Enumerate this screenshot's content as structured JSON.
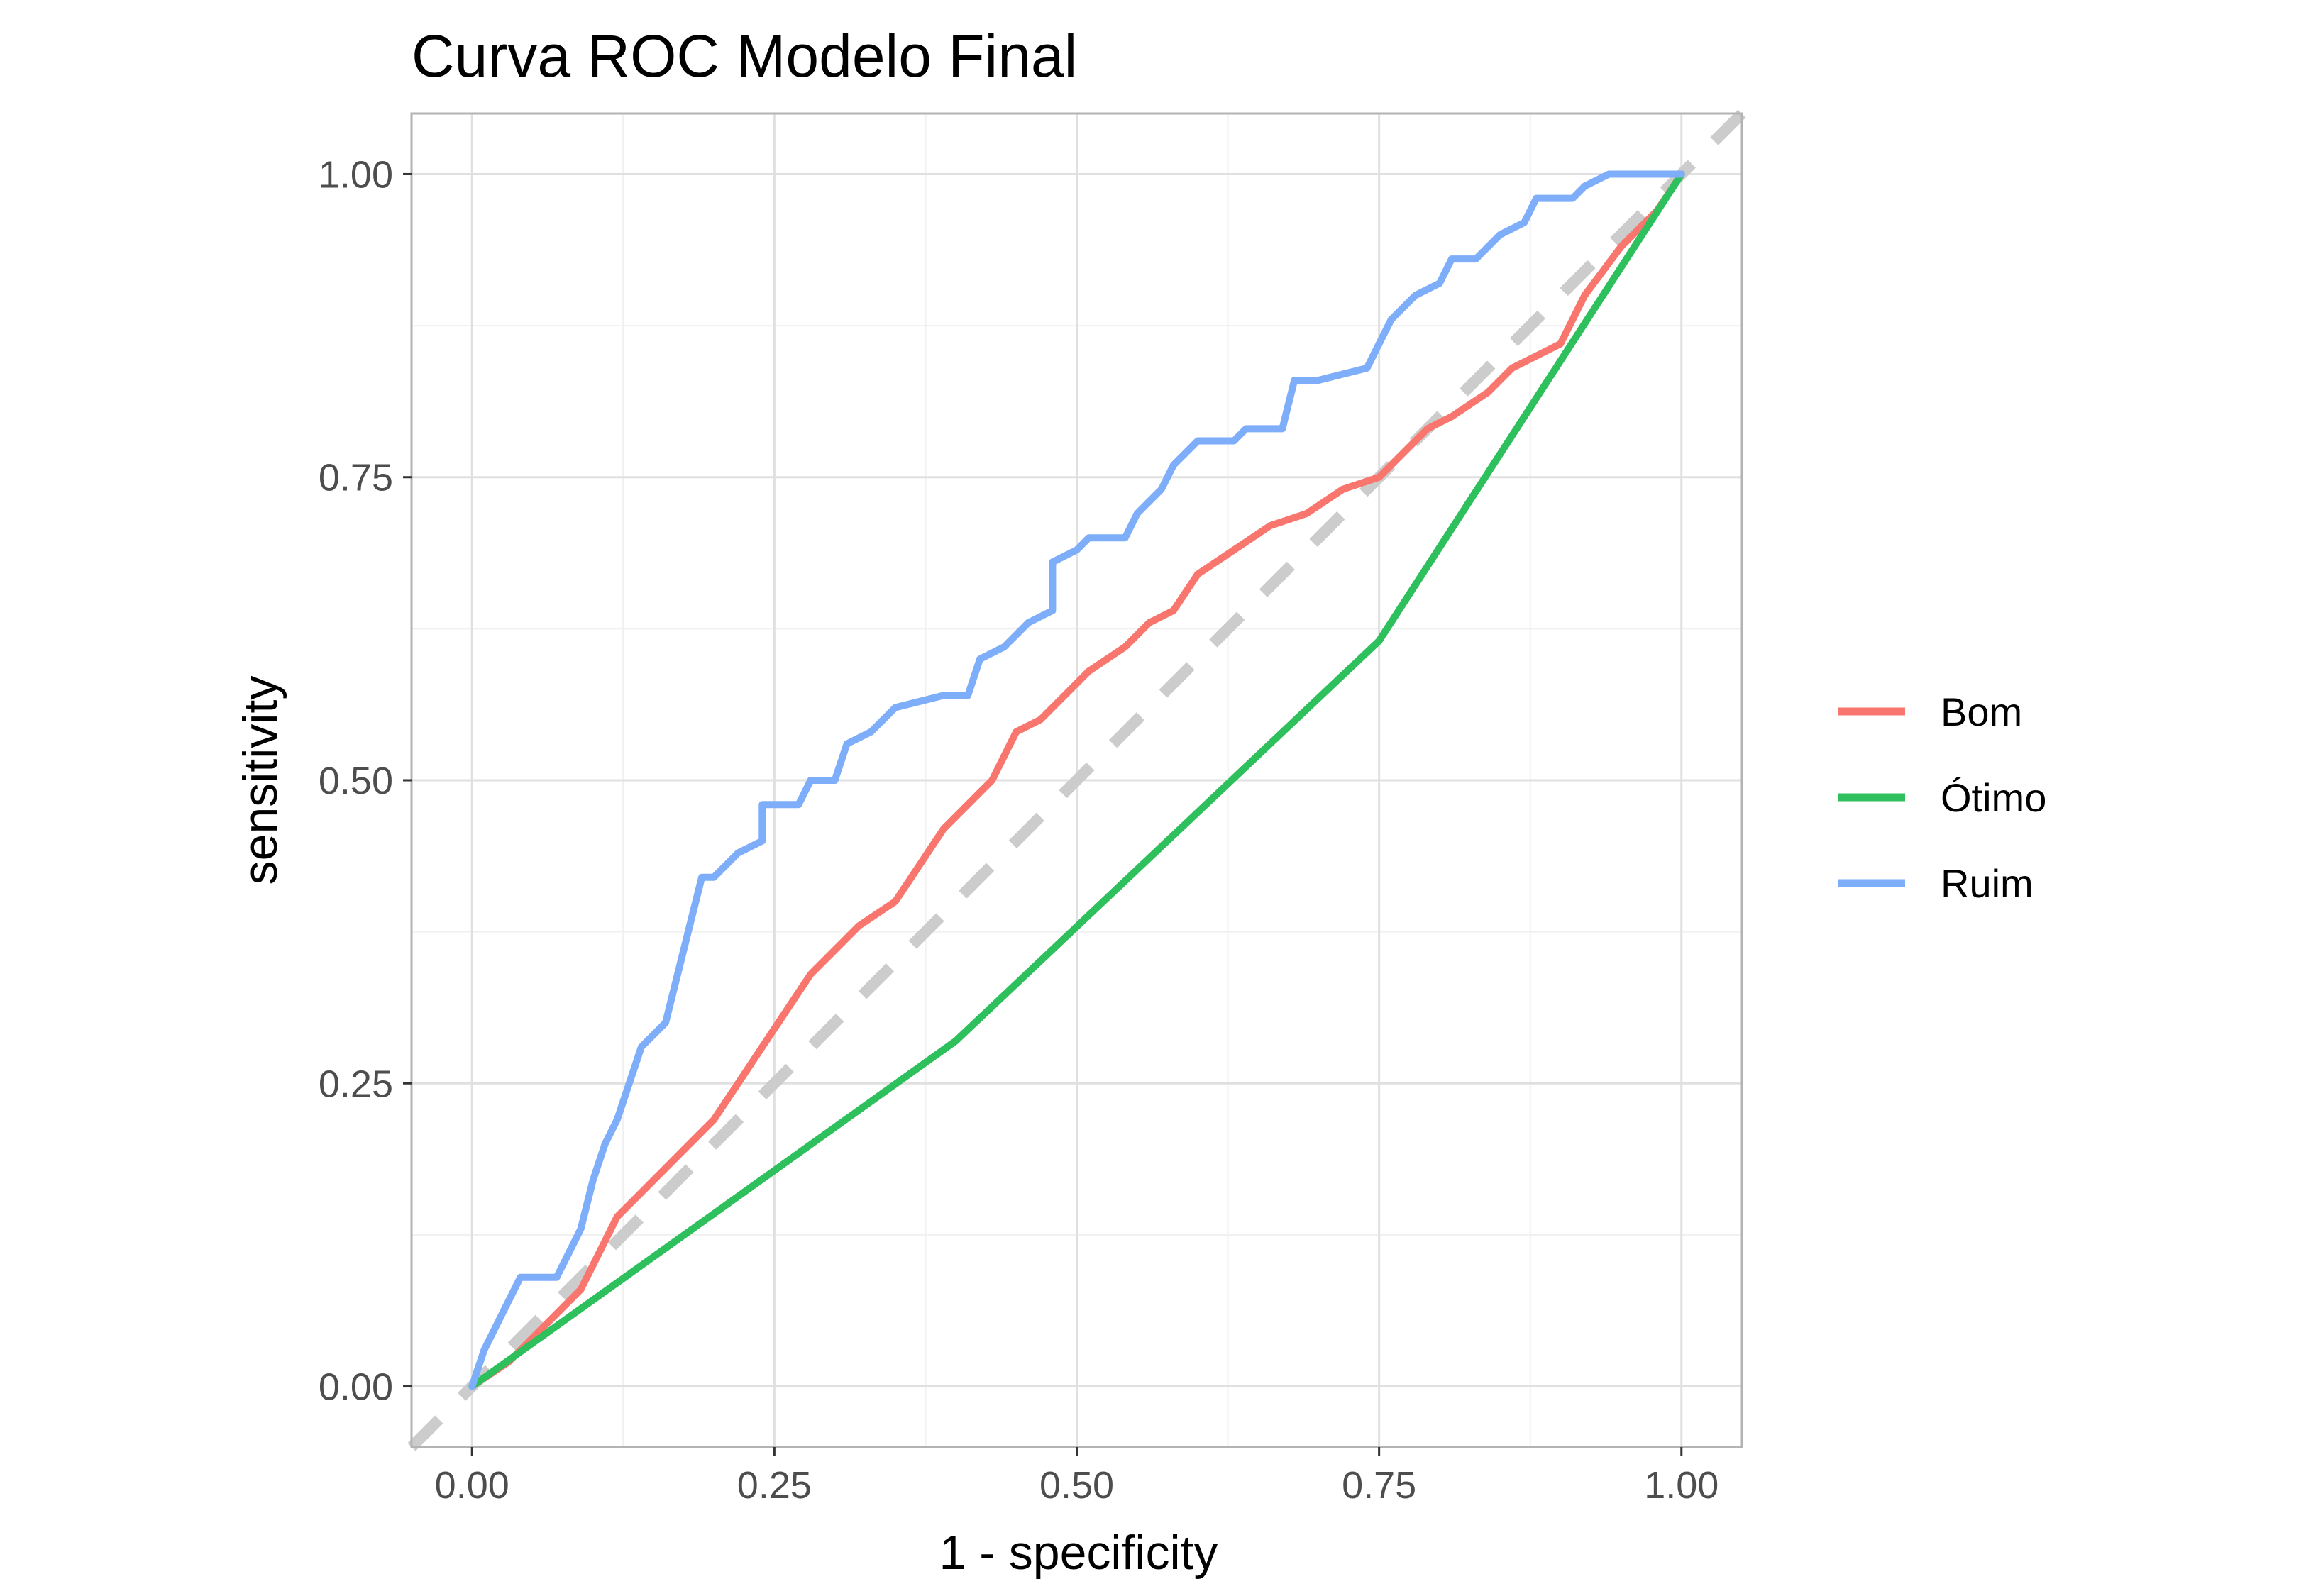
{
  "chart_data": {
    "type": "line",
    "title": "Curva ROC Modelo Final",
    "xlabel": "1 - specificity",
    "ylabel": "sensitivity",
    "xlim": [
      -0.05,
      1.05
    ],
    "ylim": [
      -0.05,
      1.05
    ],
    "x_ticks": [
      "0.00",
      "0.25",
      "0.50",
      "0.75",
      "1.00"
    ],
    "y_ticks": [
      "0.00",
      "0.25",
      "0.50",
      "0.75",
      "1.00"
    ],
    "x_tick_values": [
      0,
      0.25,
      0.5,
      0.75,
      1
    ],
    "y_tick_values": [
      0,
      0.25,
      0.5,
      0.75,
      1
    ],
    "grid": true,
    "legend_position": "right",
    "reference_line": {
      "from": [
        -0.05,
        -0.05
      ],
      "to": [
        1.05,
        1.05
      ],
      "style": "dashed",
      "color": "#cccccc"
    },
    "series": [
      {
        "name": "Bom",
        "color": "#f8766d",
        "points": [
          [
            0,
            0
          ],
          [
            0.03,
            0.02
          ],
          [
            0.05,
            0.04
          ],
          [
            0.07,
            0.06
          ],
          [
            0.09,
            0.08
          ],
          [
            0.1,
            0.1
          ],
          [
            0.12,
            0.14
          ],
          [
            0.14,
            0.16
          ],
          [
            0.16,
            0.18
          ],
          [
            0.18,
            0.2
          ],
          [
            0.2,
            0.22
          ],
          [
            0.22,
            0.25
          ],
          [
            0.24,
            0.28
          ],
          [
            0.26,
            0.31
          ],
          [
            0.28,
            0.34
          ],
          [
            0.3,
            0.36
          ],
          [
            0.32,
            0.38
          ],
          [
            0.35,
            0.4
          ],
          [
            0.37,
            0.43
          ],
          [
            0.39,
            0.46
          ],
          [
            0.41,
            0.48
          ],
          [
            0.43,
            0.5
          ],
          [
            0.45,
            0.54
          ],
          [
            0.47,
            0.55
          ],
          [
            0.49,
            0.57
          ],
          [
            0.51,
            0.59
          ],
          [
            0.54,
            0.61
          ],
          [
            0.56,
            0.63
          ],
          [
            0.58,
            0.64
          ],
          [
            0.6,
            0.67
          ],
          [
            0.63,
            0.69
          ],
          [
            0.66,
            0.71
          ],
          [
            0.69,
            0.72
          ],
          [
            0.72,
            0.74
          ],
          [
            0.75,
            0.75
          ],
          [
            0.77,
            0.77
          ],
          [
            0.79,
            0.79
          ],
          [
            0.81,
            0.8
          ],
          [
            0.84,
            0.82
          ],
          [
            0.86,
            0.84
          ],
          [
            0.88,
            0.85
          ],
          [
            0.9,
            0.86
          ],
          [
            0.92,
            0.9
          ],
          [
            0.95,
            0.94
          ],
          [
            0.98,
            0.97
          ],
          [
            1,
            1
          ]
        ]
      },
      {
        "name": "Ótimo",
        "color": "#2ec05c",
        "points": [
          [
            0,
            0
          ],
          [
            0.4,
            0.285
          ],
          [
            0.75,
            0.615
          ],
          [
            1,
            1
          ]
        ]
      },
      {
        "name": "Ruim",
        "color": "#7eaef9",
        "points": [
          [
            0,
            0
          ],
          [
            0.01,
            0.03
          ],
          [
            0.02,
            0.05
          ],
          [
            0.03,
            0.07
          ],
          [
            0.04,
            0.09
          ],
          [
            0.07,
            0.09
          ],
          [
            0.08,
            0.11
          ],
          [
            0.09,
            0.13
          ],
          [
            0.1,
            0.17
          ],
          [
            0.11,
            0.2
          ],
          [
            0.12,
            0.22
          ],
          [
            0.13,
            0.25
          ],
          [
            0.14,
            0.28
          ],
          [
            0.16,
            0.3
          ],
          [
            0.17,
            0.34
          ],
          [
            0.18,
            0.38
          ],
          [
            0.19,
            0.42
          ],
          [
            0.2,
            0.42
          ],
          [
            0.22,
            0.44
          ],
          [
            0.24,
            0.45
          ],
          [
            0.24,
            0.48
          ],
          [
            0.27,
            0.48
          ],
          [
            0.28,
            0.5
          ],
          [
            0.3,
            0.5
          ],
          [
            0.31,
            0.53
          ],
          [
            0.33,
            0.54
          ],
          [
            0.35,
            0.56
          ],
          [
            0.39,
            0.57
          ],
          [
            0.41,
            0.57
          ],
          [
            0.42,
            0.6
          ],
          [
            0.44,
            0.61
          ],
          [
            0.46,
            0.63
          ],
          [
            0.48,
            0.64
          ],
          [
            0.48,
            0.68
          ],
          [
            0.5,
            0.69
          ],
          [
            0.51,
            0.7
          ],
          [
            0.54,
            0.7
          ],
          [
            0.55,
            0.72
          ],
          [
            0.57,
            0.74
          ],
          [
            0.58,
            0.76
          ],
          [
            0.6,
            0.78
          ],
          [
            0.63,
            0.78
          ],
          [
            0.64,
            0.79
          ],
          [
            0.67,
            0.79
          ],
          [
            0.68,
            0.83
          ],
          [
            0.7,
            0.83
          ],
          [
            0.74,
            0.84
          ],
          [
            0.75,
            0.86
          ],
          [
            0.76,
            0.88
          ],
          [
            0.78,
            0.9
          ],
          [
            0.8,
            0.91
          ],
          [
            0.81,
            0.93
          ],
          [
            0.83,
            0.93
          ],
          [
            0.85,
            0.95
          ],
          [
            0.87,
            0.96
          ],
          [
            0.88,
            0.98
          ],
          [
            0.91,
            0.98
          ],
          [
            0.92,
            0.99
          ],
          [
            0.94,
            1
          ],
          [
            0.99,
            1
          ],
          [
            1,
            1
          ]
        ]
      }
    ]
  }
}
